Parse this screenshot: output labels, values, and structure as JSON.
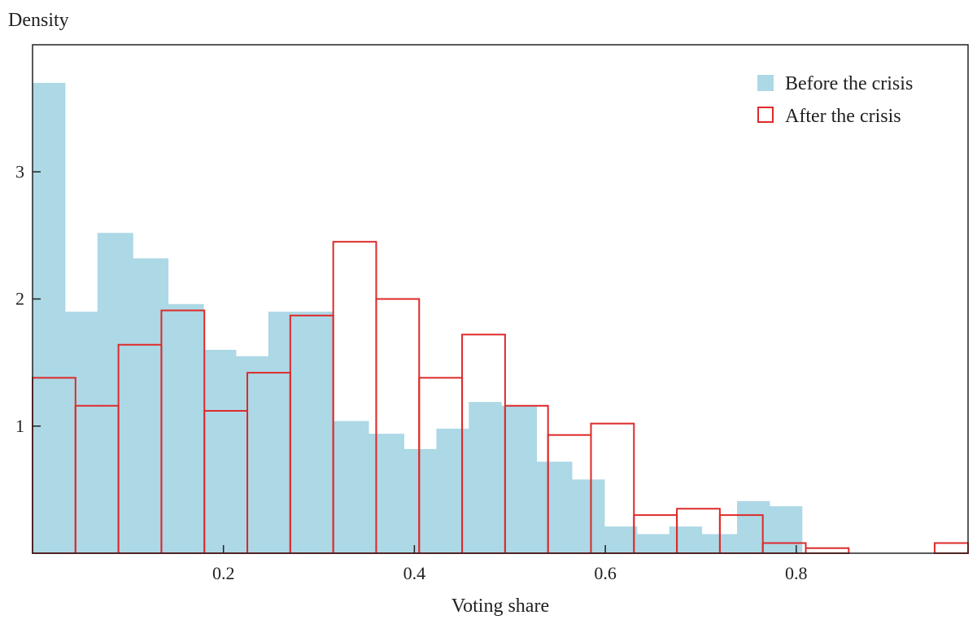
{
  "chart_data": {
    "type": "bar",
    "title": "",
    "xlabel": "Voting share",
    "ylabel": "Density",
    "xlim": [
      0,
      0.98
    ],
    "ylim": [
      0,
      4
    ],
    "x_ticks": [
      0.2,
      0.4,
      0.6,
      0.8
    ],
    "y_ticks": [
      1,
      2,
      3
    ],
    "x_tick_labels": [
      "0.2",
      "0.4",
      "0.6",
      "0.8"
    ],
    "y_tick_labels": [
      "1",
      "2",
      "3"
    ],
    "grid": false,
    "legend_position": "top-right",
    "series": [
      {
        "name": "Before the crisis",
        "style": "filled",
        "color": "#add8e6",
        "bin_edges": [
          0,
          0.034,
          0.068,
          0.105,
          0.142,
          0.179,
          0.213,
          0.247,
          0.281,
          0.315,
          0.352,
          0.389,
          0.423,
          0.457,
          0.491,
          0.528,
          0.565,
          0.599,
          0.633,
          0.667,
          0.701,
          0.738,
          0.772,
          0.806
        ],
        "values": [
          3.7,
          1.9,
          2.52,
          2.32,
          1.96,
          1.6,
          1.55,
          1.9,
          1.9,
          1.04,
          0.94,
          0.82,
          0.98,
          1.19,
          1.16,
          0.72,
          0.58,
          0.21,
          0.15,
          0.21,
          0.15,
          0.41,
          0.37
        ]
      },
      {
        "name": "After the crisis",
        "style": "outline",
        "color": "#dd2a2a",
        "bin_edges": [
          0,
          0.045,
          0.09,
          0.135,
          0.18,
          0.225,
          0.27,
          0.315,
          0.36,
          0.405,
          0.45,
          0.495,
          0.54,
          0.585,
          0.63,
          0.675,
          0.72,
          0.765,
          0.81,
          0.855,
          0.9,
          0.945,
          0.98
        ],
        "values": [
          1.38,
          1.16,
          1.64,
          1.91,
          1.12,
          1.42,
          1.87,
          2.45,
          2.0,
          1.38,
          1.72,
          1.16,
          0.93,
          1.02,
          0.3,
          0.35,
          0.3,
          0.08,
          0.04,
          0,
          0,
          0.08
        ]
      }
    ]
  }
}
